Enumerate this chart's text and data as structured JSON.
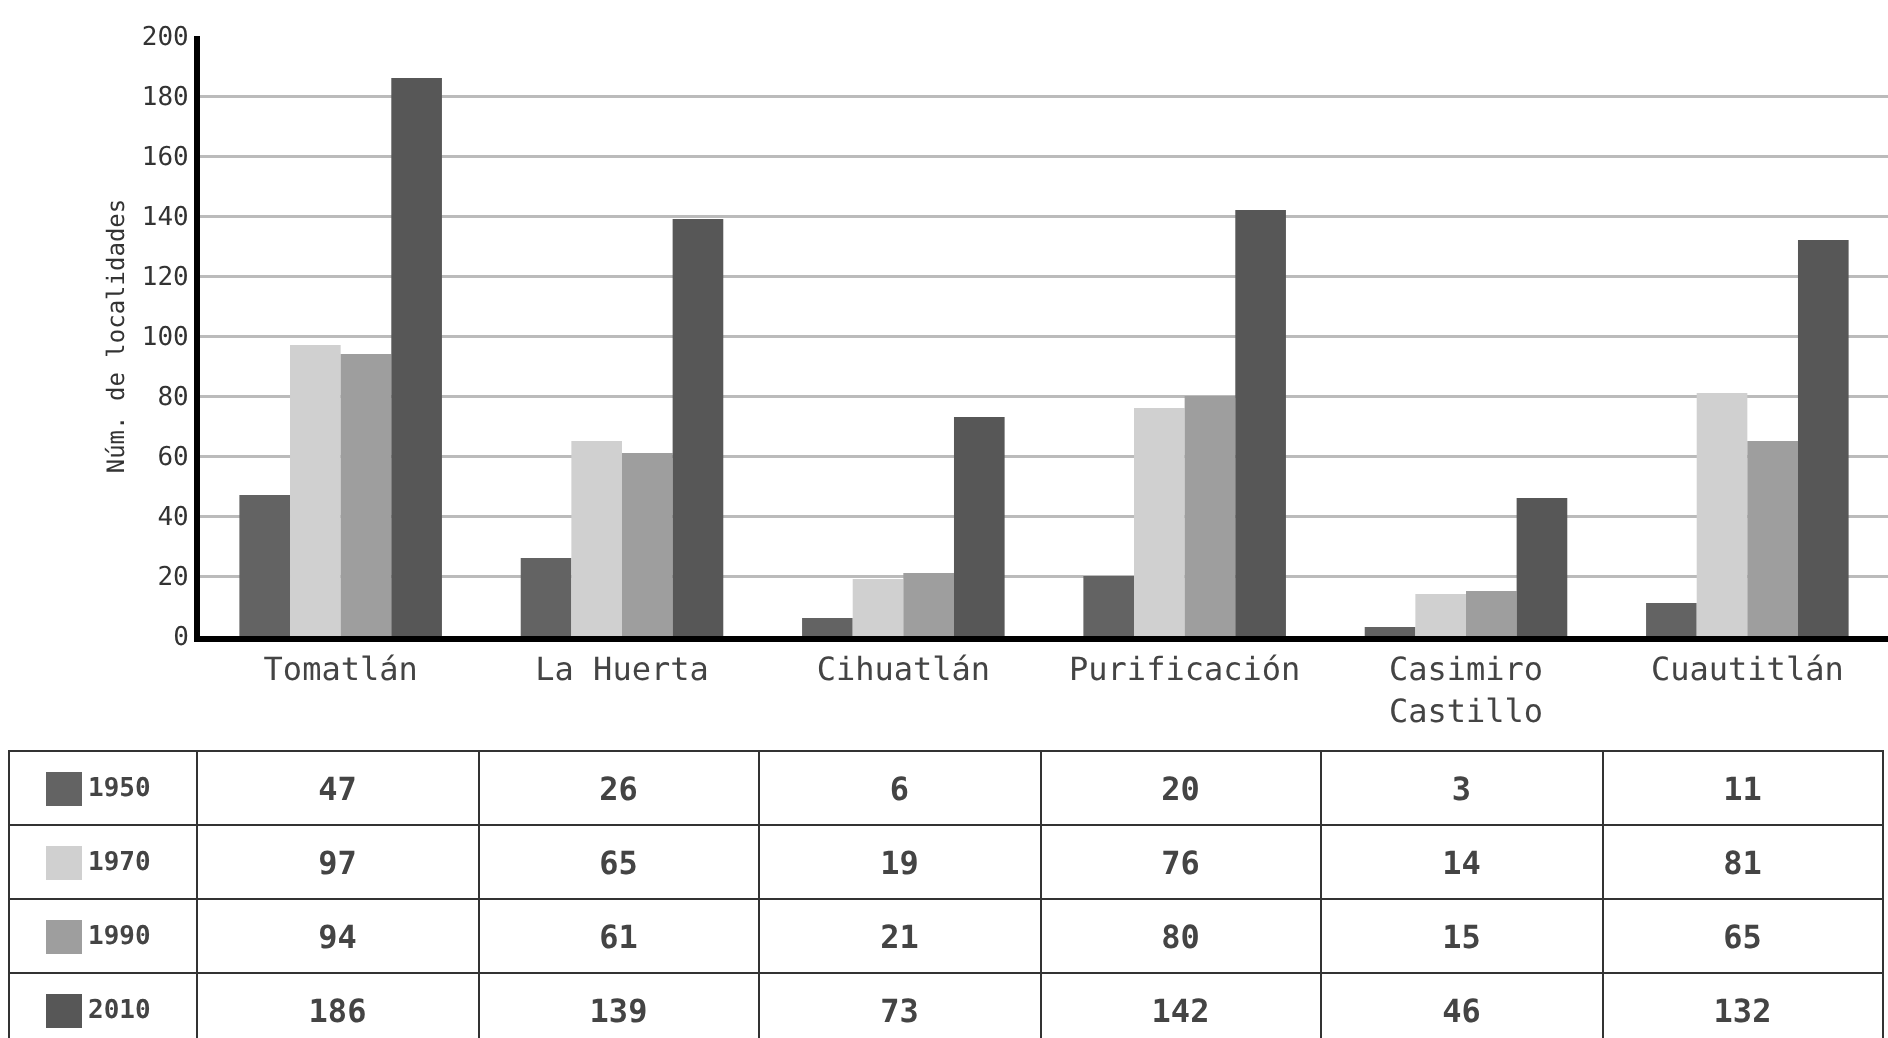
{
  "chart_data": {
    "type": "bar",
    "ylabel": "Núm. de localidades",
    "categories": [
      "Tomatlán",
      "La Huerta",
      "Cihuatlán",
      "Purificación",
      "Casimiro Castillo",
      "Cuautitlán"
    ],
    "series": [
      {
        "name": "1950",
        "color": "#636363",
        "values": [
          47,
          26,
          6,
          20,
          3,
          11
        ]
      },
      {
        "name": "1970",
        "color": "#d0d0d0",
        "values": [
          97,
          65,
          19,
          76,
          14,
          81
        ]
      },
      {
        "name": "1990",
        "color": "#9e9e9e",
        "values": [
          94,
          61,
          21,
          80,
          15,
          65
        ]
      },
      {
        "name": "2010",
        "color": "#575757",
        "values": [
          186,
          139,
          73,
          142,
          46,
          132
        ]
      }
    ],
    "ylim": [
      0,
      200
    ],
    "yticks": [
      0,
      20,
      40,
      60,
      80,
      100,
      120,
      140,
      160,
      180,
      200
    ],
    "grid": "y",
    "legend": "bottom",
    "data_labels": true
  }
}
